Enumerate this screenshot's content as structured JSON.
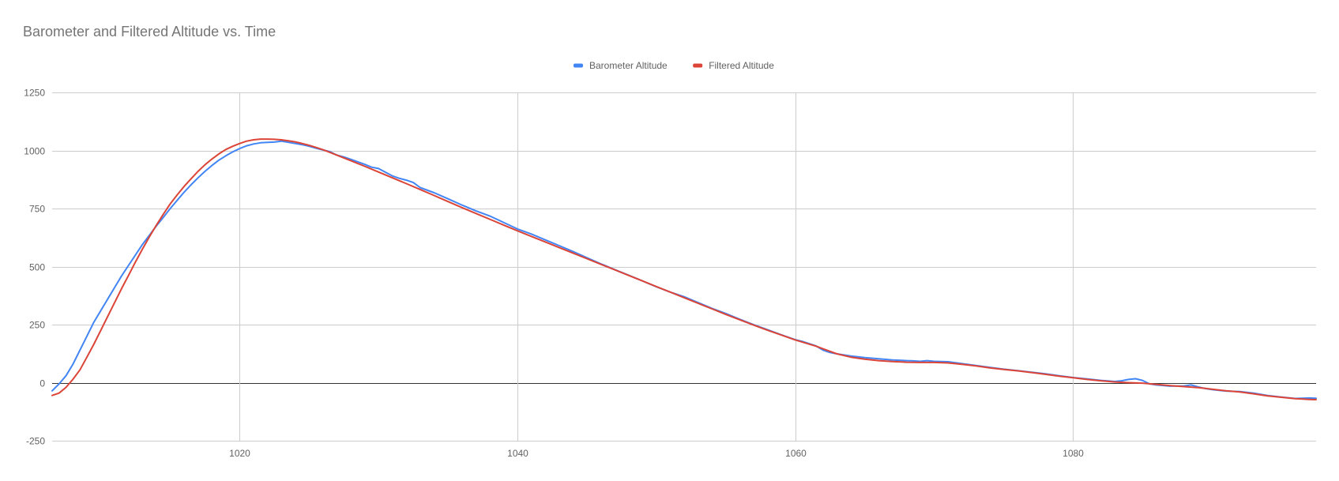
{
  "chart_data": {
    "type": "line",
    "title": "Barometer and Filtered Altitude vs. Time",
    "xlabel": "",
    "ylabel": "",
    "xlim": [
      1006.5,
      1097.5
    ],
    "ylim": [
      -250,
      1250
    ],
    "x_ticks": [
      1020,
      1040,
      1060,
      1080
    ],
    "y_ticks": [
      -250,
      0,
      250,
      500,
      750,
      1000,
      1250
    ],
    "grid": true,
    "legend_position": "top-center",
    "series": [
      {
        "name": "Barometer Altitude",
        "color": "#4285f4",
        "points": [
          [
            1006.5,
            -35
          ],
          [
            1007,
            -5
          ],
          [
            1007.5,
            30
          ],
          [
            1008,
            80
          ],
          [
            1008.5,
            140
          ],
          [
            1009,
            200
          ],
          [
            1009.5,
            260
          ],
          [
            1010,
            310
          ],
          [
            1010.5,
            360
          ],
          [
            1011,
            410
          ],
          [
            1011.5,
            460
          ],
          [
            1012,
            505
          ],
          [
            1012.5,
            550
          ],
          [
            1013,
            595
          ],
          [
            1013.5,
            635
          ],
          [
            1014,
            675
          ],
          [
            1014.5,
            712
          ],
          [
            1015,
            750
          ],
          [
            1015.5,
            785
          ],
          [
            1016,
            820
          ],
          [
            1016.5,
            852
          ],
          [
            1017,
            882
          ],
          [
            1017.5,
            910
          ],
          [
            1018,
            935
          ],
          [
            1018.5,
            958
          ],
          [
            1019,
            977
          ],
          [
            1019.5,
            994
          ],
          [
            1020,
            1008
          ],
          [
            1020.5,
            1020
          ],
          [
            1021,
            1028
          ],
          [
            1021.5,
            1033
          ],
          [
            1022,
            1035
          ],
          [
            1022.5,
            1036
          ],
          [
            1023,
            1040
          ],
          [
            1023.5,
            1035
          ],
          [
            1024,
            1030
          ],
          [
            1024.5,
            1025
          ],
          [
            1025,
            1018
          ],
          [
            1025.5,
            1010
          ],
          [
            1026,
            1002
          ],
          [
            1026.5,
            995
          ],
          [
            1027,
            980
          ],
          [
            1027.5,
            972
          ],
          [
            1028,
            962
          ],
          [
            1029,
            940
          ],
          [
            1029.5,
            928
          ],
          [
            1030,
            922
          ],
          [
            1030.5,
            906
          ],
          [
            1031,
            890
          ],
          [
            1031.5,
            880
          ],
          [
            1032,
            872
          ],
          [
            1032.5,
            862
          ],
          [
            1033,
            840
          ],
          [
            1034,
            818
          ],
          [
            1035,
            792
          ],
          [
            1036,
            765
          ],
          [
            1037,
            740
          ],
          [
            1038,
            718
          ],
          [
            1039,
            690
          ],
          [
            1040,
            662
          ],
          [
            1041,
            640
          ],
          [
            1042,
            615
          ],
          [
            1043,
            590
          ],
          [
            1044,
            565
          ],
          [
            1045,
            538
          ],
          [
            1046,
            512
          ],
          [
            1047,
            487
          ],
          [
            1048,
            463
          ],
          [
            1049,
            438
          ],
          [
            1050,
            413
          ],
          [
            1051,
            390
          ],
          [
            1052,
            370
          ],
          [
            1053,
            345
          ],
          [
            1054,
            320
          ],
          [
            1055,
            298
          ],
          [
            1056,
            273
          ],
          [
            1057,
            250
          ],
          [
            1058,
            228
          ],
          [
            1059,
            206
          ],
          [
            1060,
            185
          ],
          [
            1060.5,
            178
          ],
          [
            1061,
            168
          ],
          [
            1061.5,
            158
          ],
          [
            1062,
            140
          ],
          [
            1062.5,
            130
          ],
          [
            1063,
            124
          ],
          [
            1064,
            115
          ],
          [
            1065,
            108
          ],
          [
            1066,
            103
          ],
          [
            1067,
            98
          ],
          [
            1068,
            95
          ],
          [
            1068.5,
            94
          ],
          [
            1069,
            92
          ],
          [
            1069.5,
            95
          ],
          [
            1070,
            92
          ],
          [
            1071,
            90
          ],
          [
            1072,
            82
          ],
          [
            1073,
            74
          ],
          [
            1074,
            66
          ],
          [
            1075,
            58
          ],
          [
            1076,
            52
          ],
          [
            1077,
            45
          ],
          [
            1078,
            38
          ],
          [
            1079,
            30
          ],
          [
            1080,
            22
          ],
          [
            1081,
            16
          ],
          [
            1082,
            10
          ],
          [
            1083,
            5
          ],
          [
            1083.5,
            8
          ],
          [
            1084,
            14
          ],
          [
            1084.5,
            17
          ],
          [
            1085,
            10
          ],
          [
            1085.5,
            -5
          ],
          [
            1086,
            -10
          ],
          [
            1087,
            -15
          ],
          [
            1088,
            -14
          ],
          [
            1088.5,
            -10
          ],
          [
            1089,
            -18
          ],
          [
            1089.5,
            -25
          ],
          [
            1090,
            -30
          ],
          [
            1091,
            -36
          ],
          [
            1092,
            -38
          ],
          [
            1093,
            -45
          ],
          [
            1094,
            -55
          ],
          [
            1095,
            -62
          ],
          [
            1096,
            -68
          ],
          [
            1097,
            -66
          ],
          [
            1097.5,
            -67
          ]
        ]
      },
      {
        "name": "Filtered Altitude",
        "color": "#db4437",
        "points": [
          [
            1006.5,
            -55
          ],
          [
            1007,
            -45
          ],
          [
            1007.5,
            -20
          ],
          [
            1008,
            15
          ],
          [
            1008.5,
            55
          ],
          [
            1009,
            110
          ],
          [
            1009.5,
            165
          ],
          [
            1010,
            225
          ],
          [
            1010.5,
            285
          ],
          [
            1011,
            345
          ],
          [
            1011.5,
            405
          ],
          [
            1012,
            462
          ],
          [
            1012.5,
            520
          ],
          [
            1013,
            575
          ],
          [
            1013.5,
            628
          ],
          [
            1014,
            678
          ],
          [
            1014.5,
            725
          ],
          [
            1015,
            770
          ],
          [
            1015.5,
            808
          ],
          [
            1016,
            845
          ],
          [
            1016.5,
            878
          ],
          [
            1017,
            910
          ],
          [
            1017.5,
            938
          ],
          [
            1018,
            963
          ],
          [
            1018.5,
            985
          ],
          [
            1019,
            1004
          ],
          [
            1019.5,
            1018
          ],
          [
            1020,
            1030
          ],
          [
            1020.5,
            1040
          ],
          [
            1021,
            1046
          ],
          [
            1021.5,
            1049
          ],
          [
            1022,
            1049
          ],
          [
            1022.5,
            1048
          ],
          [
            1023,
            1046
          ],
          [
            1023.5,
            1042
          ],
          [
            1024,
            1037
          ],
          [
            1024.5,
            1030
          ],
          [
            1025,
            1022
          ],
          [
            1025.5,
            1013
          ],
          [
            1026,
            1003
          ],
          [
            1026.5,
            992
          ],
          [
            1027,
            980
          ],
          [
            1027.5,
            968
          ],
          [
            1028,
            956
          ],
          [
            1029,
            932
          ],
          [
            1030,
            907
          ],
          [
            1031,
            882
          ],
          [
            1032,
            857
          ],
          [
            1033,
            832
          ],
          [
            1034,
            806
          ],
          [
            1035,
            780
          ],
          [
            1036,
            754
          ],
          [
            1037,
            729
          ],
          [
            1038,
            704
          ],
          [
            1039,
            679
          ],
          [
            1040,
            654
          ],
          [
            1041,
            630
          ],
          [
            1042,
            606
          ],
          [
            1043,
            582
          ],
          [
            1044,
            558
          ],
          [
            1045,
            534
          ],
          [
            1046,
            510
          ],
          [
            1047,
            486
          ],
          [
            1048,
            462
          ],
          [
            1049,
            438
          ],
          [
            1050,
            414
          ],
          [
            1051,
            390
          ],
          [
            1052,
            366
          ],
          [
            1053,
            342
          ],
          [
            1054,
            318
          ],
          [
            1055,
            294
          ],
          [
            1056,
            271
          ],
          [
            1057,
            248
          ],
          [
            1058,
            226
          ],
          [
            1059,
            205
          ],
          [
            1060,
            184
          ],
          [
            1060.5,
            175
          ],
          [
            1061,
            166
          ],
          [
            1061.5,
            157
          ],
          [
            1062,
            146
          ],
          [
            1062.5,
            135
          ],
          [
            1063,
            124
          ],
          [
            1064,
            110
          ],
          [
            1065,
            101
          ],
          [
            1066,
            95
          ],
          [
            1067,
            91
          ],
          [
            1068,
            88
          ],
          [
            1069,
            87
          ],
          [
            1070,
            87
          ],
          [
            1071,
            85
          ],
          [
            1072,
            79
          ],
          [
            1073,
            72
          ],
          [
            1074,
            64
          ],
          [
            1075,
            57
          ],
          [
            1076,
            51
          ],
          [
            1077,
            44
          ],
          [
            1078,
            36
          ],
          [
            1079,
            28
          ],
          [
            1080,
            21
          ],
          [
            1081,
            14
          ],
          [
            1082,
            8
          ],
          [
            1083,
            3
          ],
          [
            1084,
            0
          ],
          [
            1085,
            -2
          ],
          [
            1086,
            -7
          ],
          [
            1087,
            -13
          ],
          [
            1088,
            -17
          ],
          [
            1089,
            -21
          ],
          [
            1090,
            -28
          ],
          [
            1091,
            -35
          ],
          [
            1092,
            -40
          ],
          [
            1093,
            -48
          ],
          [
            1094,
            -57
          ],
          [
            1095,
            -63
          ],
          [
            1096,
            -69
          ],
          [
            1097,
            -72
          ],
          [
            1097.5,
            -73
          ]
        ]
      }
    ]
  }
}
